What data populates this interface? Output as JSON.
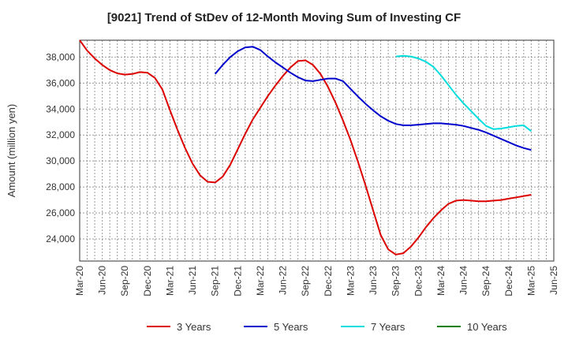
{
  "chart_data": {
    "type": "line",
    "title": "[9021]  Trend of StDev of 12-Month Moving Sum of Investing CF",
    "xlabel": "",
    "ylabel": "Amount (million yen)",
    "ylim": [
      22300,
      39300
    ],
    "yticks": [
      24000,
      26000,
      28000,
      30000,
      32000,
      34000,
      36000,
      38000
    ],
    "ytick_labels": [
      "24,000",
      "26,000",
      "28,000",
      "30,000",
      "32,000",
      "34,000",
      "36,000",
      "38,000"
    ],
    "xticks": [
      "Mar-20",
      "Jun-20",
      "Sep-20",
      "Dec-20",
      "Mar-21",
      "Jun-21",
      "Sep-21",
      "Dec-21",
      "Mar-22",
      "Jun-22",
      "Sep-22",
      "Dec-22",
      "Mar-23",
      "Jun-23",
      "Sep-23",
      "Dec-23",
      "Mar-24",
      "Jun-24",
      "Sep-24",
      "Dec-24",
      "Mar-25",
      "Jun-25"
    ],
    "grid": true,
    "legend_position": "bottom",
    "series": [
      {
        "name": "3 Years",
        "color": "#dd0000",
        "x": [
          "2020-03",
          "2020-04",
          "2020-05",
          "2020-06",
          "2020-07",
          "2020-08",
          "2020-09",
          "2020-10",
          "2020-11",
          "2020-12",
          "2021-01",
          "2021-02",
          "2021-03",
          "2021-04",
          "2021-05",
          "2021-06",
          "2021-07",
          "2021-08",
          "2021-09",
          "2021-10",
          "2021-11",
          "2021-12",
          "2022-01",
          "2022-02",
          "2022-03",
          "2022-04",
          "2022-05",
          "2022-06",
          "2022-07",
          "2022-08",
          "2022-09",
          "2022-10",
          "2022-11",
          "2022-12",
          "2023-01",
          "2023-02",
          "2023-03",
          "2023-04",
          "2023-05",
          "2023-06",
          "2023-07",
          "2023-08",
          "2023-09",
          "2023-10",
          "2023-11",
          "2023-12",
          "2024-01",
          "2024-02",
          "2024-03",
          "2024-04",
          "2024-05",
          "2024-06",
          "2024-07",
          "2024-08",
          "2024-09",
          "2024-10",
          "2024-11",
          "2024-12",
          "2025-01",
          "2025-02",
          "2025-03"
        ],
        "values": [
          39300,
          38500,
          37900,
          37400,
          37000,
          36750,
          36650,
          36700,
          36850,
          36800,
          36400,
          35500,
          33900,
          32400,
          31000,
          29800,
          28900,
          28400,
          28350,
          28800,
          29700,
          30900,
          32100,
          33200,
          34100,
          35000,
          35800,
          36550,
          37200,
          37700,
          37750,
          37400,
          36700,
          35700,
          34500,
          33100,
          31600,
          29900,
          28100,
          26200,
          24300,
          23200,
          22800,
          22900,
          23400,
          24100,
          24900,
          25600,
          26200,
          26700,
          26950,
          27000,
          26950,
          26900,
          26900,
          26950,
          27000,
          27100,
          27200,
          27300,
          27400
        ]
      },
      {
        "name": "5 Years",
        "color": "#0000cc",
        "x": [
          "2021-09",
          "2021-10",
          "2021-11",
          "2021-12",
          "2022-01",
          "2022-02",
          "2022-03",
          "2022-04",
          "2022-05",
          "2022-06",
          "2022-07",
          "2022-08",
          "2022-09",
          "2022-10",
          "2022-11",
          "2022-12",
          "2023-01",
          "2023-02",
          "2023-03",
          "2023-04",
          "2023-05",
          "2023-06",
          "2023-07",
          "2023-08",
          "2023-09",
          "2023-10",
          "2023-11",
          "2023-12",
          "2024-01",
          "2024-02",
          "2024-03",
          "2024-04",
          "2024-05",
          "2024-06",
          "2024-07",
          "2024-08",
          "2024-09",
          "2024-10",
          "2024-11",
          "2024-12",
          "2025-01",
          "2025-02",
          "2025-03"
        ],
        "values": [
          36700,
          37400,
          38000,
          38450,
          38750,
          38800,
          38550,
          38050,
          37600,
          37200,
          36800,
          36450,
          36200,
          36150,
          36250,
          36350,
          36350,
          36150,
          35550,
          34950,
          34400,
          33900,
          33450,
          33100,
          32850,
          32750,
          32750,
          32800,
          32850,
          32900,
          32900,
          32850,
          32800,
          32700,
          32550,
          32400,
          32200,
          31950,
          31700,
          31450,
          31200,
          31000,
          30850
        ]
      },
      {
        "name": "7 Years",
        "color": "#00dddd",
        "x": [
          "2023-09",
          "2023-10",
          "2023-11",
          "2023-12",
          "2024-01",
          "2024-02",
          "2024-03",
          "2024-04",
          "2024-05",
          "2024-06",
          "2024-07",
          "2024-08",
          "2024-09",
          "2024-10",
          "2024-11",
          "2024-12",
          "2025-01",
          "2025-02",
          "2025-03"
        ],
        "values": [
          38050,
          38100,
          38050,
          37900,
          37650,
          37250,
          36600,
          35850,
          35100,
          34450,
          33850,
          33250,
          32700,
          32450,
          32500,
          32600,
          32700,
          32750,
          32300
        ]
      },
      {
        "name": "10 Years",
        "color": "#008000",
        "x": [],
        "values": []
      }
    ]
  }
}
